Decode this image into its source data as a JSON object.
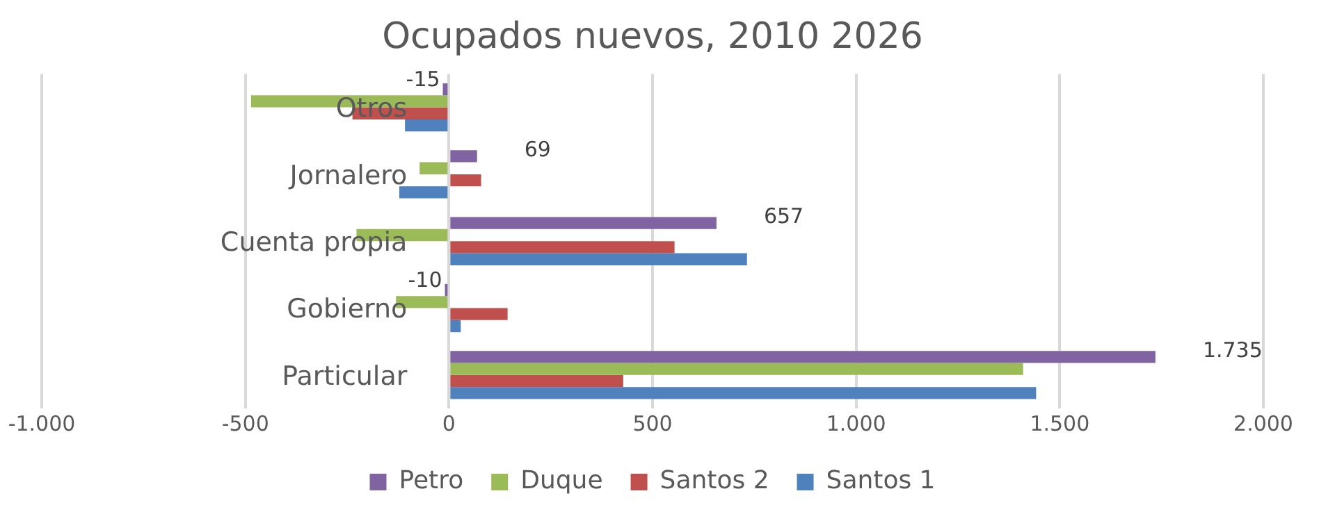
{
  "chart_data": {
    "type": "bar",
    "title": "Ocupados nuevos, 2010 2026",
    "orientation": "horizontal",
    "categories": [
      "Otros",
      "Jornalero",
      "Cuenta propia",
      "Gobierno",
      "Particular"
    ],
    "series": [
      {
        "name": "Petro",
        "color": "#8064a2",
        "values": [
          -15,
          69,
          657,
          -10,
          1735
        ],
        "value_labels": [
          "-15",
          "69",
          "657",
          "-10",
          "1.735"
        ]
      },
      {
        "name": "Duque",
        "color": "#9bbb59",
        "values": [
          -486,
          -72,
          -227,
          -130,
          1410
        ]
      },
      {
        "name": "Santos 2",
        "color": "#c0504d",
        "values": [
          -237,
          79,
          554,
          144,
          428
        ]
      },
      {
        "name": "Santos 1",
        "color": "#4f81bd",
        "values": [
          -108,
          -122,
          732,
          29,
          1442
        ]
      }
    ],
    "xlim": [
      -1000,
      2000
    ],
    "xticks": [
      {
        "value": -1000,
        "label": "-1.000"
      },
      {
        "value": -500,
        "label": "-500"
      },
      {
        "value": 0,
        "label": "0"
      },
      {
        "value": 500,
        "label": "500"
      },
      {
        "value": 1000,
        "label": "1.000"
      },
      {
        "value": 1500,
        "label": "1.500"
      },
      {
        "value": 2000,
        "label": "2.000"
      }
    ],
    "grid": "x",
    "legend": "bottom"
  }
}
